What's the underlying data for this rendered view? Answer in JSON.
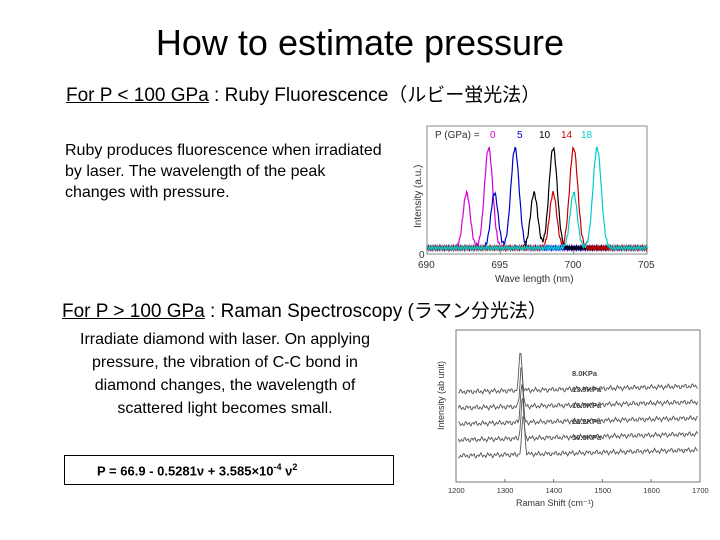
{
  "title": "How to estimate pressure",
  "ruby": {
    "heading_label": "For P < 100 GPa",
    "heading_rest": " : Ruby Fluorescence（ルビー蛍光法）",
    "description": "Ruby produces fluorescence when irradiated by laser. The wavelength of the peak changes with pressure.",
    "chart": {
      "pressure_label": "P (GPa) =",
      "pressure_values": [
        "0",
        "5",
        "10",
        "14",
        "18"
      ],
      "ylabel": "Intensity (a.u.)",
      "xlabel": "Wave length (nm)",
      "y_zero": "0",
      "x_ticks": [
        "690",
        "695",
        "700",
        "705"
      ]
    }
  },
  "raman": {
    "heading_label": "For P > 100 GPa",
    "heading_rest": " : Raman Spectroscopy (ラマン分光法）",
    "description": "Irradiate diamond with laser. On applying pressure, the vibration of C-C bond in diamond changes, the wavelength of scattered light becomes small.",
    "formula": {
      "main": "P = 66.9 - 0.5281ν + 3.585×10",
      "exp": "-4",
      "tail": " ν",
      "exp2": "2"
    },
    "chart": {
      "ylabel": "Intensity (ab unit)",
      "xlabel": "Raman Shift (cm⁻¹)",
      "curve_labels": [
        "8.0KPa",
        "13.9KPa",
        "16.0KPa",
        "22.2KPa",
        "30.0KPa"
      ],
      "x_ticks": [
        "1200",
        "1300",
        "1400",
        "1500",
        "1600",
        "1700"
      ]
    }
  },
  "chart_data": [
    {
      "type": "line",
      "title": "",
      "xlabel": "Wave length (nm)",
      "ylabel": "Intensity (a.u.)",
      "xlim": [
        690,
        705
      ],
      "x_ticks": [
        690,
        695,
        700,
        705
      ],
      "series": [
        {
          "name": "0",
          "color": "#d400d4",
          "peaks_nm": [
            692.7,
            694.2
          ]
        },
        {
          "name": "5",
          "color": "#0000cc",
          "peaks_nm": [
            694.6,
            696.0
          ]
        },
        {
          "name": "10",
          "color": "#000000",
          "peaks_nm": [
            697.3,
            698.6
          ]
        },
        {
          "name": "14",
          "color": "#cc0000",
          "peaks_nm": [
            698.6,
            700.0
          ]
        },
        {
          "name": "18",
          "color": "#00cccc",
          "peaks_nm": [
            700.0,
            701.6
          ]
        }
      ]
    },
    {
      "type": "line",
      "title": "",
      "xlabel": "Raman Shift (cm⁻¹)",
      "ylabel": "Intensity (ab unit)",
      "xlim": [
        1200,
        1700
      ],
      "x_ticks": [
        1200,
        1300,
        1400,
        1500,
        1600,
        1700
      ],
      "series": [
        {
          "name": "8.0KPa",
          "peak": 1332
        },
        {
          "name": "13.9KPa",
          "peak": 1334
        },
        {
          "name": "16.0KPa",
          "peak": 1335
        },
        {
          "name": "22.2KPa",
          "peak": 1336
        },
        {
          "name": "30.0KPa",
          "peak": 1338
        }
      ]
    }
  ]
}
